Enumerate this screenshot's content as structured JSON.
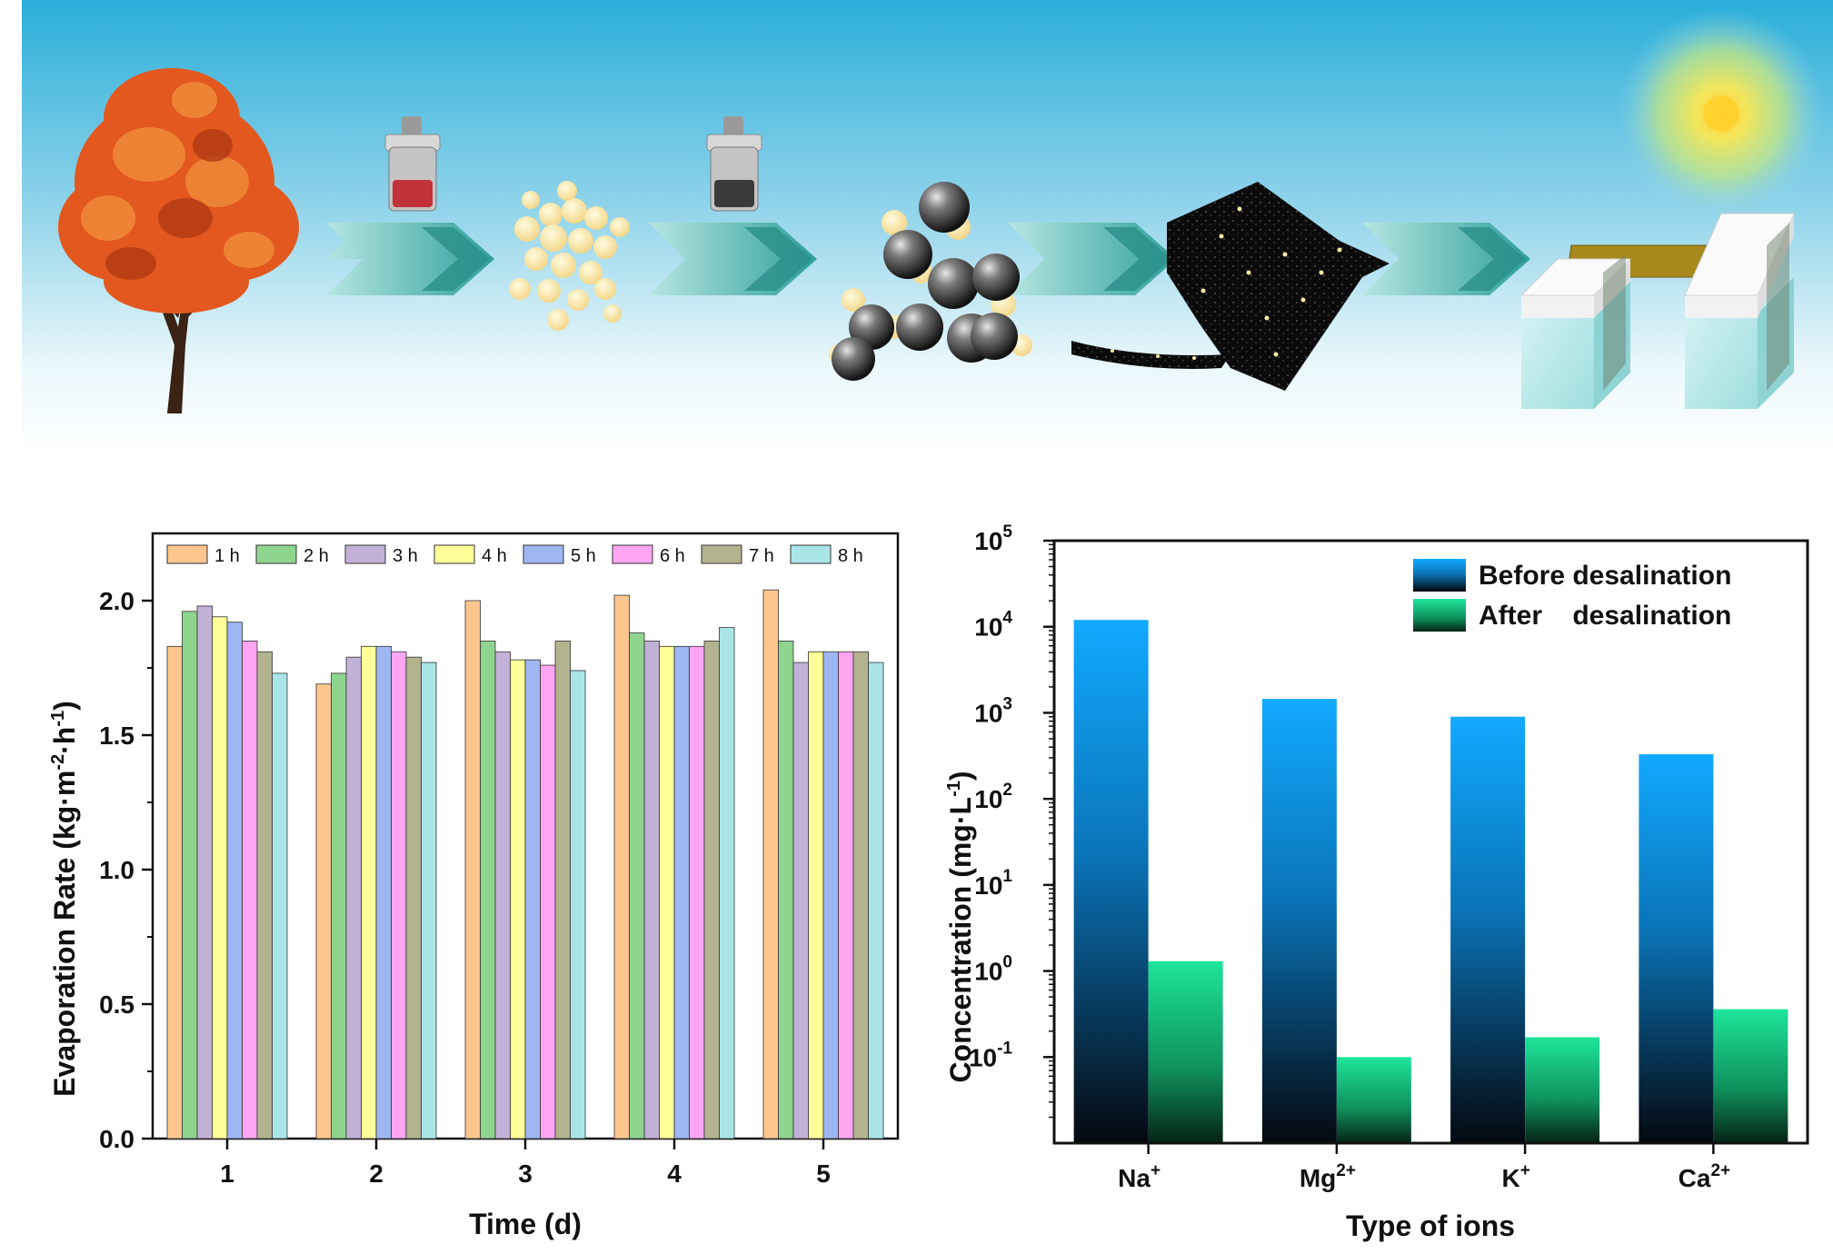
{
  "colors": {
    "sky_top": "#2fb2dc",
    "sky_bottom": "#ffffff",
    "arrow": "#3fa3a0",
    "bar_before_top": "#12a9ff",
    "bar_before_bottom": "#05080f",
    "bar_after_top": "#1ee59a",
    "bar_after_bottom": "#052315",
    "sun": "#f7d94a"
  },
  "banner": {
    "steps": [
      "tree-icon",
      "weight-red-icon",
      "beads-icon",
      "weight-grey-icon",
      "coated-spheres-icon",
      "carbon-sheet-icon",
      "evaporator-device-icon",
      "sun-icon"
    ]
  },
  "chart_data": [
    {
      "type": "bar",
      "title": "",
      "xlabel": "Time (d)",
      "ylabel_main": "Evaporation Rate (kg·m",
      "ylabel_sup1": "-2",
      "ylabel_mid": "·h",
      "ylabel_sup2": "-1",
      "ylabel_end": ")",
      "categories": [
        "1",
        "2",
        "3",
        "4",
        "5"
      ],
      "ylim": [
        0,
        2.25
      ],
      "yticks": [
        "0.0",
        "0.5",
        "1.0",
        "1.5",
        "2.0"
      ],
      "ytick_values": [
        0,
        0.5,
        1.0,
        1.5,
        2.0
      ],
      "series": [
        {
          "name": "1 h",
          "color": "#fdc68f",
          "values": [
            1.83,
            1.69,
            2.0,
            2.02,
            2.04
          ]
        },
        {
          "name": "2 h",
          "color": "#8fd48f",
          "values": [
            1.96,
            1.73,
            1.85,
            1.88,
            1.85
          ]
        },
        {
          "name": "3 h",
          "color": "#c2b1d7",
          "values": [
            1.98,
            1.79,
            1.81,
            1.85,
            1.77
          ]
        },
        {
          "name": "4 h",
          "color": "#ffff99",
          "values": [
            1.94,
            1.83,
            1.78,
            1.83,
            1.81
          ]
        },
        {
          "name": "5 h",
          "color": "#9eb7f2",
          "values": [
            1.92,
            1.83,
            1.78,
            1.83,
            1.81
          ]
        },
        {
          "name": "6 h",
          "color": "#ffa5f2",
          "values": [
            1.85,
            1.81,
            1.76,
            1.83,
            1.81
          ]
        },
        {
          "name": "7 h",
          "color": "#b4b390",
          "values": [
            1.81,
            1.79,
            1.85,
            1.85,
            1.81
          ]
        },
        {
          "name": "8 h",
          "color": "#a9e5e7",
          "values": [
            1.73,
            1.77,
            1.74,
            1.9,
            1.77
          ]
        }
      ],
      "legend_position": "top"
    },
    {
      "type": "bar",
      "scale": "log",
      "title": "",
      "xlabel": "Type of ions",
      "ylabel_main": "Concentration (mg·L",
      "ylabel_sup1": "-1",
      "ylabel_end": ")",
      "categories": [
        {
          "base": "Na",
          "sup": "+"
        },
        {
          "base": "Mg",
          "sup": "2+"
        },
        {
          "base": "K",
          "sup": "+"
        },
        {
          "base": "Ca",
          "sup": "2+"
        }
      ],
      "ylim": [
        0.01,
        100000
      ],
      "yticks": [
        {
          "base": "10",
          "sup": "5"
        },
        {
          "base": "10",
          "sup": "4"
        },
        {
          "base": "10",
          "sup": "3"
        },
        {
          "base": "10",
          "sup": "2"
        },
        {
          "base": "10",
          "sup": "1"
        },
        {
          "base": "10",
          "sup": "0"
        },
        {
          "base": "10",
          "sup": "-1"
        }
      ],
      "ytick_exponents": [
        5,
        4,
        3,
        2,
        1,
        0,
        -1
      ],
      "series": [
        {
          "name": "Before desalination",
          "values": [
            12000,
            1450,
            900,
            330
          ]
        },
        {
          "name": "After    desalination",
          "values": [
            1.3,
            0.1,
            0.17,
            0.36
          ]
        }
      ],
      "legend_position": "top-right"
    }
  ]
}
